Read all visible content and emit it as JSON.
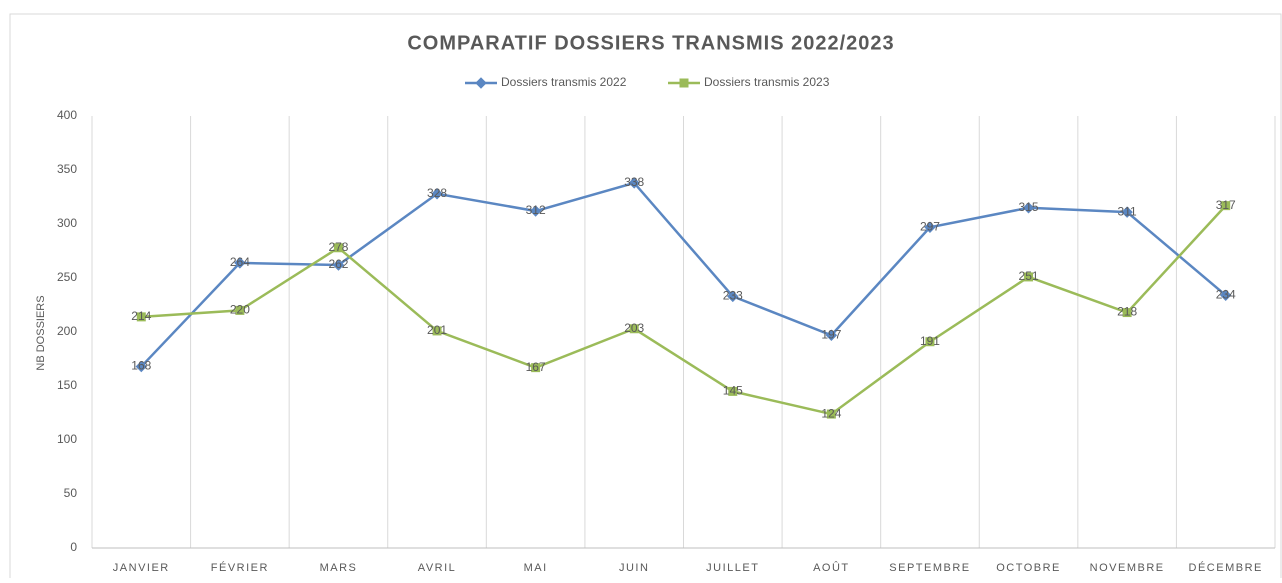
{
  "chart_data": {
    "type": "line",
    "title": "COMPARATIF DOSSIERS TRANSMIS 2022/2023",
    "y_label": "NB DOSSIERS",
    "categories": [
      "JANVIER",
      "FÉVRIER",
      "MARS",
      "AVRIL",
      "MAI",
      "JUIN",
      "JUILLET",
      "AOÛT",
      "SEPTEMBRE",
      "OCTOBRE",
      "NOVEMBRE",
      "DÉCEMBRE"
    ],
    "series": [
      {
        "name": "Dossiers transmis 2022",
        "color": "#5b87c2",
        "marker": "diamond",
        "values": [
          168,
          264,
          262,
          328,
          312,
          338,
          233,
          197,
          297,
          315,
          311,
          234
        ]
      },
      {
        "name": "Dossiers transmis 2023",
        "color": "#9bbb59",
        "marker": "square",
        "values": [
          214,
          220,
          278,
          201,
          167,
          203,
          145,
          124,
          191,
          251,
          218,
          317
        ]
      }
    ],
    "ylim": [
      0,
      400
    ],
    "yticks": [
      0,
      50,
      100,
      150,
      200,
      250,
      300,
      350,
      400
    ],
    "legend": "top"
  }
}
